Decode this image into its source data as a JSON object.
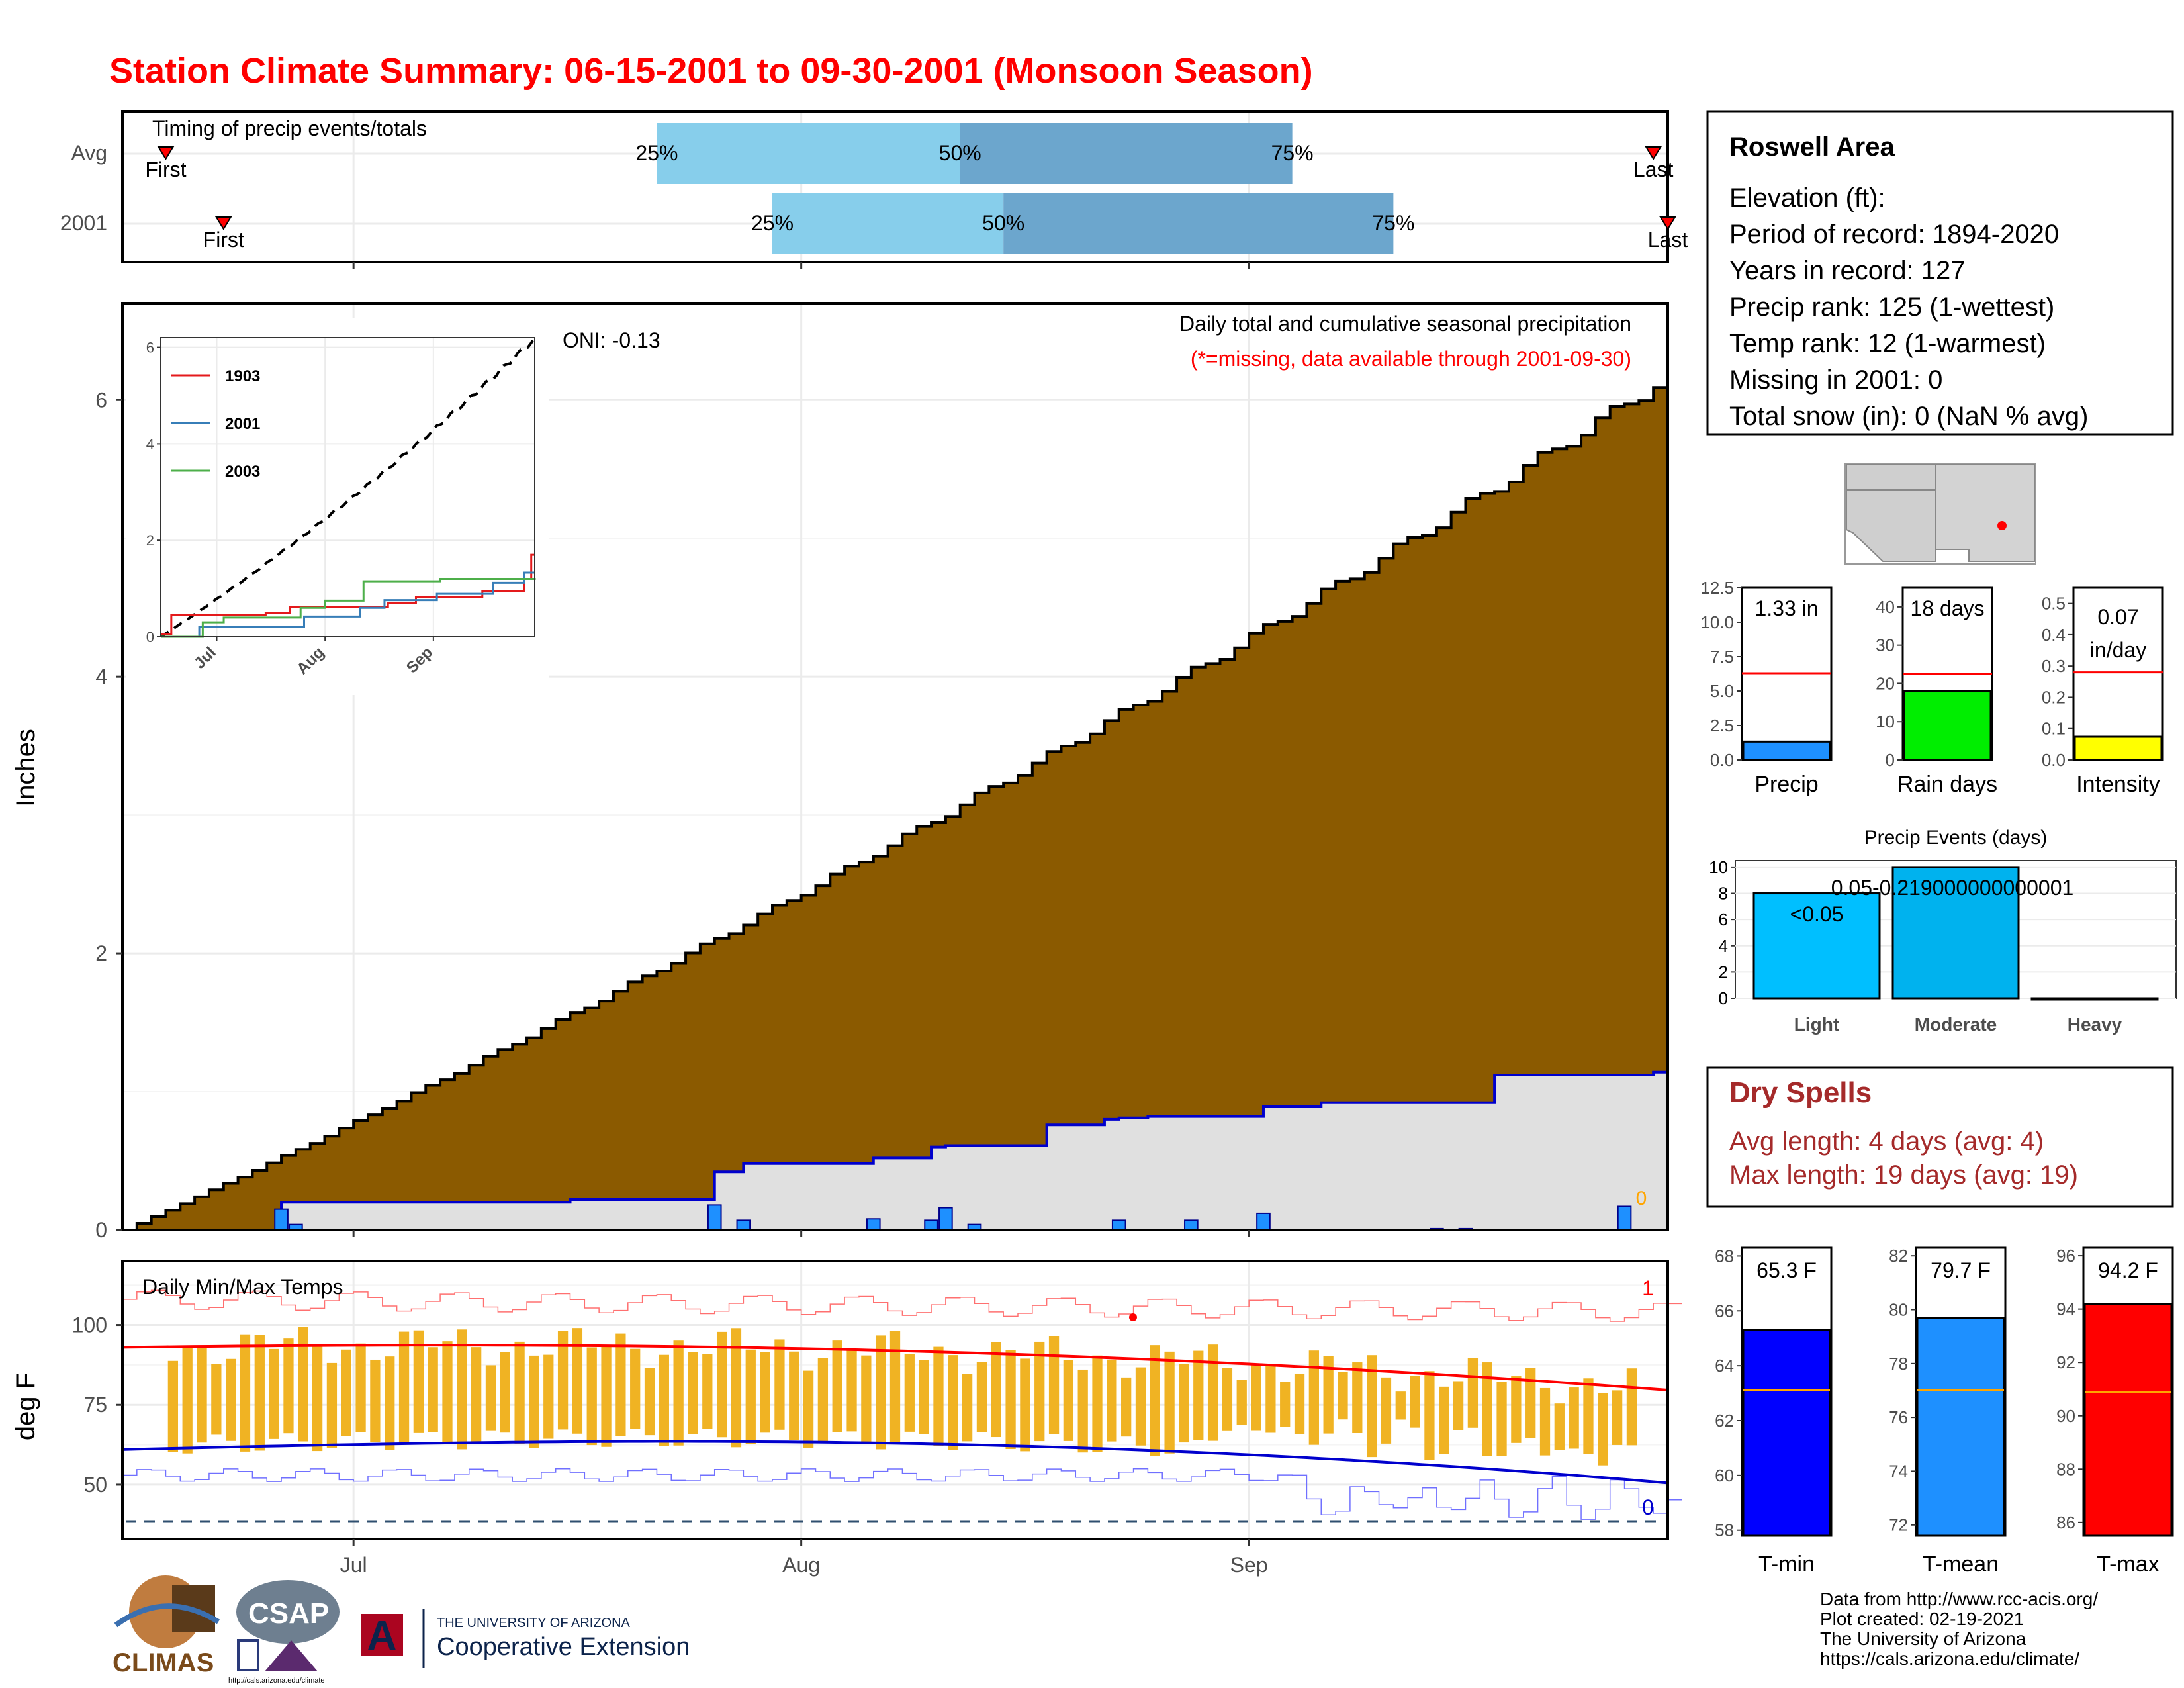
{
  "title": "Station Climate Summary: 06-15-2001 to 09-30-2001 (Monsoon Season)",
  "timing": {
    "title": "Timing of precip events/totals",
    "rows": [
      {
        "label": "Avg",
        "first_day": 3,
        "p25_day": 37,
        "p50_day": 58,
        "p75_day": 81,
        "last_day": 106,
        "first_label": "First",
        "last_label": "Last",
        "p25_label": "25%",
        "p50_label": "50%",
        "p75_label": "75%"
      },
      {
        "label": "2001",
        "first_day": 7,
        "p25_day": 45,
        "p50_day": 61,
        "p75_day": 88,
        "last_day": 107,
        "first_label": "First",
        "last_label": "Last",
        "p25_label": "25%",
        "p50_label": "50%",
        "p75_label": "75%"
      }
    ]
  },
  "main_chart": {
    "ylabel": "Inches",
    "yticks": [
      "0",
      "2",
      "4",
      "6"
    ],
    "xticks": [
      "Jul",
      "Aug",
      "Sep"
    ],
    "oni": "ONI: -0.13",
    "subtitle": "Daily total and cumulative seasonal precipitation",
    "missing_note": "(*=missing, data available through 2001-09-30)",
    "missing_count": "0"
  },
  "inset": {
    "yticks": [
      "0",
      "2",
      "4",
      "6"
    ],
    "xticks": [
      "Jul",
      "Aug",
      "Sep"
    ],
    "legend": [
      {
        "name": "1903",
        "color": "#e41a1c"
      },
      {
        "name": "2001",
        "color": "#377eb8"
      },
      {
        "name": "2003",
        "color": "#4daf4a"
      }
    ]
  },
  "temp_chart": {
    "ylabel": "deg F",
    "title": "Daily Min/Max Temps",
    "yticks": [
      "50",
      "75",
      "100"
    ],
    "record_high_count": "1",
    "record_low_count": "0"
  },
  "station": {
    "name": "Roswell Area",
    "lines": [
      "Elevation (ft):",
      "Period of record: 1894-2020",
      "Years in record: 127",
      "Precip rank: 125 (1-wettest)",
      "Temp rank: 12 (1-warmest)",
      "Missing in 2001: 0",
      "Total snow (in): 0 (NaN % avg)"
    ]
  },
  "summary_bars": [
    {
      "name": "Precip",
      "label": "1.33 in",
      "label2": "",
      "value": 1.33,
      "avg": 6.3,
      "max": 12.5,
      "ticks": [
        "0.0",
        "2.5",
        "5.0",
        "7.5",
        "10.0",
        "12.5"
      ],
      "color": "#1e90ff"
    },
    {
      "name": "Rain days",
      "label": "18 days",
      "label2": "",
      "value": 18,
      "avg": 22.5,
      "max": 45,
      "ticks": [
        "0",
        "10",
        "20",
        "30",
        "40"
      ],
      "color": "#00ee00"
    },
    {
      "name": "Intensity",
      "label": "0.07",
      "label2": "in/day",
      "value": 0.074,
      "avg": 0.28,
      "max": 0.55,
      "ticks": [
        "0.0",
        "0.1",
        "0.2",
        "0.3",
        "0.4",
        "0.5"
      ],
      "color": "#ffff00"
    }
  ],
  "precip_events": {
    "title": "Precip Events (days)",
    "categories": [
      "Light",
      "Moderate",
      "Heavy"
    ],
    "values": [
      8,
      10,
      0
    ],
    "bar_labels": [
      "<0.05",
      "0.05-0.219000000000001",
      ""
    ],
    "yticks": [
      "0",
      "2",
      "4",
      "6",
      "8",
      "10"
    ],
    "colors": [
      "#00bfff",
      "#00b2ee",
      "#009acd"
    ]
  },
  "dry_spells": {
    "title": "Dry Spells",
    "avg_line": "Avg length: 4 days (avg: 4)",
    "max_line": "Max length: 19 days (avg: 19)"
  },
  "temp_bars": [
    {
      "name": "T-min",
      "label": "65.3 F",
      "value": 65.3,
      "avg": 63.1,
      "min": 57.8,
      "max": 68.3,
      "ticks": [
        "58",
        "60",
        "62",
        "64",
        "66",
        "68"
      ],
      "color": "#0000ff"
    },
    {
      "name": "T-mean",
      "label": "79.7 F",
      "value": 79.7,
      "avg": 77.0,
      "min": 71.6,
      "max": 82.3,
      "ticks": [
        "72",
        "74",
        "76",
        "78",
        "80",
        "82"
      ],
      "color": "#1e90ff"
    },
    {
      "name": "T-max",
      "label": "94.2 F",
      "value": 94.2,
      "avg": 90.9,
      "min": 85.5,
      "max": 96.3,
      "ticks": [
        "86",
        "88",
        "90",
        "92",
        "94",
        "96"
      ],
      "color": "#ff0000"
    }
  ],
  "footer": {
    "lines": [
      "Data from http://www.rcc-acis.org/",
      "Plot created: 02-19-2021",
      "The University of Arizona",
      "https://cals.arizona.edu/climate/"
    ],
    "climas": "CLIMAS",
    "csap": "CSAP",
    "csap_url": "http://cals.arizona.edu/climate",
    "ua_small": "THE UNIVERSITY OF ARIZONA",
    "ua_big": "Cooperative Extension",
    "ua_letter": "A"
  },
  "chart_data": [
    {
      "type": "area",
      "title": "Daily total and cumulative seasonal precipitation",
      "ylabel": "Inches",
      "x_range": [
        "2001-06-15",
        "2001-09-30"
      ],
      "ylim": [
        0,
        6.7
      ],
      "series": [
        {
          "name": "",
          "values_desc": "avg cumulative",
          "end_value": 6.18
        },
        {
          "name": "",
          "values_desc": "2001 cumulative",
          "end_value": 1.33
        }
      ],
      "cum2001": [
        [
          0,
          0
        ],
        [
          11,
          0.2
        ],
        [
          31,
          0.22
        ],
        [
          41,
          0.42
        ],
        [
          43,
          0.48
        ],
        [
          52,
          0.52
        ],
        [
          56,
          0.6
        ],
        [
          57,
          0.61
        ],
        [
          64,
          0.76
        ],
        [
          68,
          0.8
        ],
        [
          69,
          0.81
        ],
        [
          71,
          0.82
        ],
        [
          79,
          0.89
        ],
        [
          83,
          0.92
        ],
        [
          95,
          1.12
        ],
        [
          106,
          1.14
        ],
        [
          107,
          1.33
        ]
      ],
      "daily_2001": [
        [
          11,
          0.15
        ],
        [
          12,
          0.04
        ],
        [
          31,
          0.004
        ],
        [
          41,
          0.18
        ],
        [
          43,
          0.07
        ],
        [
          52,
          0.08
        ],
        [
          56,
          0.07
        ],
        [
          57,
          0.16
        ],
        [
          59,
          0.04
        ],
        [
          69,
          0.07
        ],
        [
          74,
          0.07
        ],
        [
          79,
          0.12
        ],
        [
          91,
          0.01
        ],
        [
          93,
          0.01
        ],
        [
          104,
          0.17
        ]
      ]
    },
    {
      "type": "bar",
      "title": "Daily Min/Max Temps",
      "ylabel": "deg F",
      "ylim": [
        33,
        120
      ],
      "avg_high_range": [
        93,
        80
      ],
      "avg_low_range": [
        61,
        51
      ]
    }
  ]
}
